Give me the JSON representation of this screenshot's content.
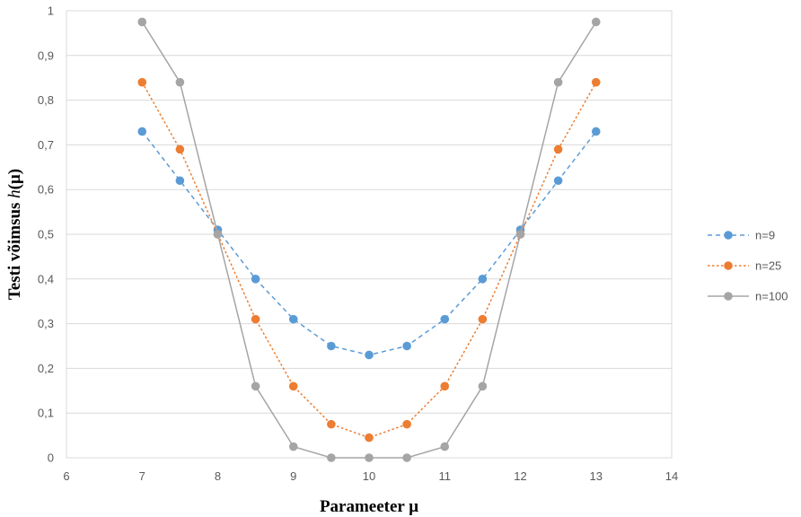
{
  "chart_data": {
    "type": "line",
    "title": "",
    "xlabel": "Parameeter μ",
    "ylabel_prefix": "Testi võimsus ",
    "ylabel_var": "h",
    "ylabel_suffix": "(μ)",
    "xlim": [
      6,
      14
    ],
    "ylim": [
      0,
      1
    ],
    "x_ticks": [
      "6",
      "7",
      "8",
      "9",
      "10",
      "11",
      "12",
      "13",
      "14"
    ],
    "y_ticks": [
      "0",
      "0,1",
      "0,2",
      "0,3",
      "0,4",
      "0,5",
      "0,6",
      "0,7",
      "0,8",
      "0,9",
      "1"
    ],
    "grid": "horizontal",
    "legend_position": "right",
    "x": [
      7,
      7.5,
      8,
      8.5,
      9,
      9.5,
      10,
      10.5,
      11,
      11.5,
      12,
      12.5,
      13
    ],
    "series": [
      {
        "name": "n=9",
        "color": "#5b9bd5",
        "line_style": "dashed",
        "values": [
          0.73,
          0.62,
          0.51,
          0.4,
          0.31,
          0.25,
          0.23,
          0.25,
          0.31,
          0.4,
          0.51,
          0.62,
          0.73
        ]
      },
      {
        "name": "n=25",
        "color": "#ed7d31",
        "line_style": "dotted",
        "values": [
          0.84,
          0.69,
          0.5,
          0.31,
          0.16,
          0.075,
          0.045,
          0.075,
          0.16,
          0.31,
          0.5,
          0.69,
          0.84
        ]
      },
      {
        "name": "n=100",
        "color": "#a5a5a5",
        "line_style": "solid",
        "values": [
          0.975,
          0.84,
          0.5,
          0.16,
          0.025,
          0.0,
          0.0,
          0.0,
          0.025,
          0.16,
          0.5,
          0.84,
          0.975
        ]
      }
    ]
  }
}
